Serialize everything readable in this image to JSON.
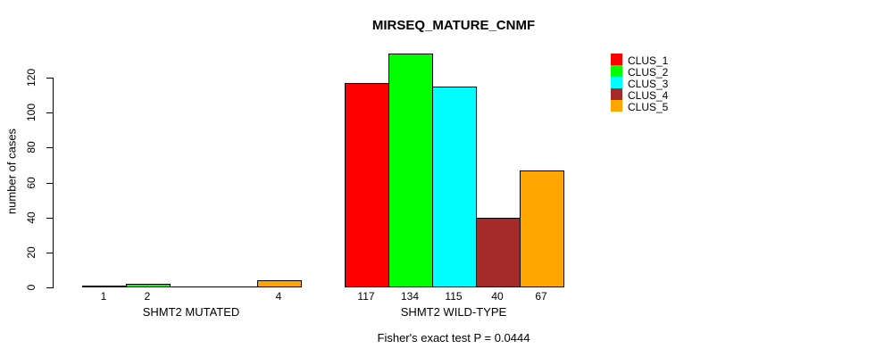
{
  "title": "MIRSEQ_MATURE_CNMF",
  "footer": "Fisher's exact test P = 0.0444",
  "chart_data": {
    "type": "bar",
    "title": "MIRSEQ_MATURE_CNMF",
    "xlabel": "",
    "ylabel": "number of cases",
    "ylim": [
      0,
      134
    ],
    "yticks": [
      0,
      20,
      40,
      60,
      80,
      100,
      120
    ],
    "grid": false,
    "legend_position": "right-outside",
    "series": [
      {
        "name": "CLUS_1",
        "color": "#ff0000"
      },
      {
        "name": "CLUS_2",
        "color": "#00ff00"
      },
      {
        "name": "CLUS_3",
        "color": "#00ffff"
      },
      {
        "name": "CLUS_4",
        "color": "#a52a2a"
      },
      {
        "name": "CLUS_5",
        "color": "#ffa500"
      }
    ],
    "groups": [
      {
        "label": "SHMT2 MUTATED",
        "values": [
          1,
          2,
          0,
          0,
          4
        ]
      },
      {
        "label": "SHMT2 WILD-TYPE",
        "values": [
          117,
          134,
          115,
          40,
          67
        ]
      }
    ],
    "annotation": "Fisher's exact test P = 0.0444"
  }
}
